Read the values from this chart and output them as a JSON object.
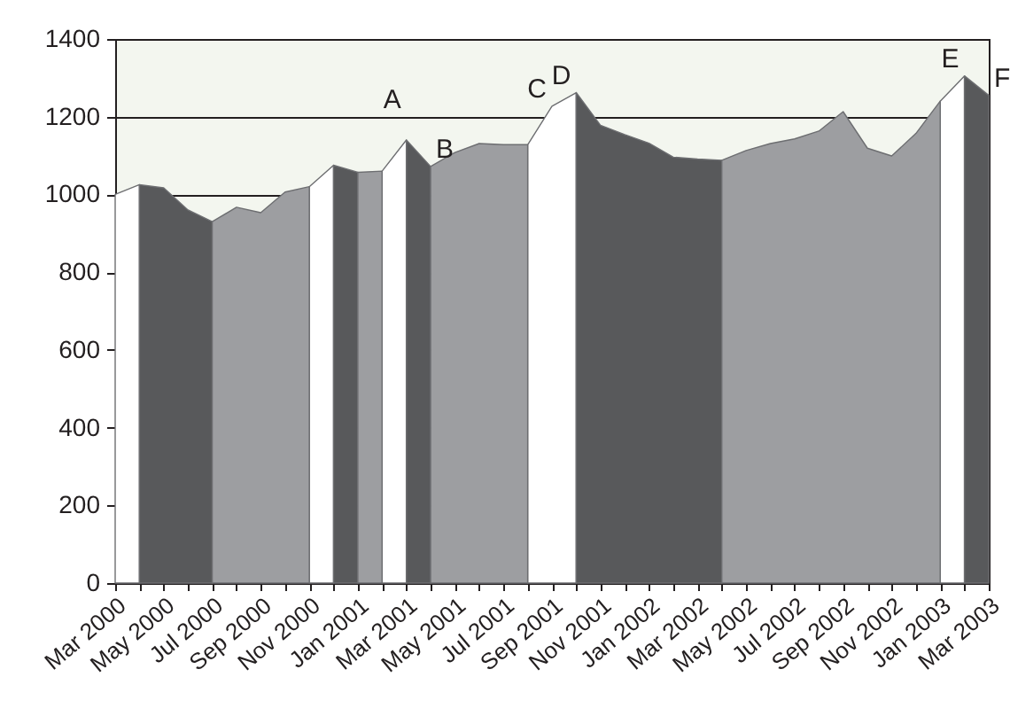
{
  "chart_data": {
    "type": "area",
    "x": [
      "2000-03",
      "2000-04",
      "2000-05",
      "2000-06",
      "2000-07",
      "2000-08",
      "2000-09",
      "2000-10",
      "2000-11",
      "2000-12",
      "2001-01",
      "2001-02",
      "2001-03",
      "2001-04",
      "2001-05",
      "2001-06",
      "2001-07",
      "2001-08",
      "2001-09",
      "2001-10",
      "2001-11",
      "2001-12",
      "2002-01",
      "2002-02",
      "2002-03",
      "2002-04",
      "2002-05",
      "2002-06",
      "2002-07",
      "2002-08",
      "2002-09",
      "2002-10",
      "2002-11",
      "2002-12",
      "2003-01",
      "2003-02",
      "2003-03"
    ],
    "series": [
      {
        "color": "#ffffff",
        "values": [
          1000,
          1025,
          null,
          null,
          null,
          null,
          null,
          null,
          1020,
          1075,
          null,
          1060,
          1140,
          null,
          null,
          null,
          null,
          1128,
          1227,
          1262,
          null,
          null,
          null,
          null,
          null,
          null,
          null,
          null,
          null,
          null,
          null,
          null,
          null,
          null,
          1240,
          1305,
          null
        ]
      },
      {
        "color": "#58595b",
        "values": [
          null,
          1025,
          1017,
          960,
          930,
          null,
          null,
          null,
          null,
          1075,
          1057,
          null,
          1140,
          1072,
          null,
          null,
          null,
          null,
          null,
          1262,
          1178,
          1154,
          1132,
          1096,
          1091,
          1088,
          null,
          null,
          null,
          null,
          null,
          null,
          null,
          null,
          null,
          1305,
          1255
        ]
      },
      {
        "color": "#9d9ea1",
        "values": [
          null,
          null,
          null,
          null,
          930,
          967,
          953,
          1006,
          1020,
          null,
          1057,
          1060,
          null,
          1072,
          1108,
          1131,
          1128,
          1128,
          null,
          null,
          null,
          null,
          null,
          null,
          null,
          1088,
          1113,
          1131,
          1143,
          1163,
          1213,
          1119,
          1099,
          1157,
          1240,
          null,
          null
        ]
      }
    ],
    "xlim": [
      "2000-03",
      "2003-03"
    ],
    "xticks": [
      {
        "value": "2000-03",
        "label": "Mar 2000"
      },
      {
        "value": "2000-04",
        "label": null
      },
      {
        "value": "2000-05",
        "label": "May 2000"
      },
      {
        "value": "2000-06",
        "label": null
      },
      {
        "value": "2000-07",
        "label": "Jul 2000"
      },
      {
        "value": "2000-08",
        "label": null
      },
      {
        "value": "2000-09",
        "label": "Sep 2000"
      },
      {
        "value": "2000-10",
        "label": null
      },
      {
        "value": "2000-11",
        "label": "Nov 2000"
      },
      {
        "value": "2000-12",
        "label": null
      },
      {
        "value": "2001-01",
        "label": "Jan 2001"
      },
      {
        "value": "2001-02",
        "label": null
      },
      {
        "value": "2001-03",
        "label": "Mar 2001"
      },
      {
        "value": "2001-04",
        "label": null
      },
      {
        "value": "2001-05",
        "label": "May 2001"
      },
      {
        "value": "2001-06",
        "label": null
      },
      {
        "value": "2001-07",
        "label": "Jul 2001"
      },
      {
        "value": "2001-08",
        "label": null
      },
      {
        "value": "2001-09",
        "label": "Sep 2001"
      },
      {
        "value": "2001-10",
        "label": null
      },
      {
        "value": "2001-11",
        "label": "Nov 2001"
      },
      {
        "value": "2001-12",
        "label": null
      },
      {
        "value": "2002-01",
        "label": "Jan 2002"
      },
      {
        "value": "2002-02",
        "label": null
      },
      {
        "value": "2002-03",
        "label": "Mar 2002"
      },
      {
        "value": "2002-04",
        "label": null
      },
      {
        "value": "2002-05",
        "label": "May 2002"
      },
      {
        "value": "2002-06",
        "label": null
      },
      {
        "value": "2002-07",
        "label": "Jul 2002"
      },
      {
        "value": "2002-08",
        "label": null
      },
      {
        "value": "2002-09",
        "label": "Sep 2002"
      },
      {
        "value": "2002-10",
        "label": null
      },
      {
        "value": "2002-11",
        "label": "Nov 2002"
      },
      {
        "value": "2002-12",
        "label": null
      },
      {
        "value": "2003-01",
        "label": "Jan 2003"
      },
      {
        "value": "2003-02",
        "label": null
      },
      {
        "value": "2003-03",
        "label": "Mar 2003"
      }
    ],
    "ylim": [
      0,
      1400
    ],
    "yticks": [
      0,
      200,
      400,
      600,
      800,
      1000,
      1200,
      1400
    ],
    "grid": "y",
    "annotations": [
      {
        "text": "A",
        "x": "2001-03",
        "y": 1140
      },
      {
        "text": "B",
        "x": "2001-04",
        "y": 1072
      },
      {
        "text": "C",
        "x": "2001-09",
        "y": 1227
      },
      {
        "text": "D",
        "x": "2001-10",
        "y": 1262
      },
      {
        "text": "E",
        "x": "2003-02",
        "y": 1305
      },
      {
        "text": "F",
        "x": "2003-03",
        "y": 1255
      }
    ]
  }
}
